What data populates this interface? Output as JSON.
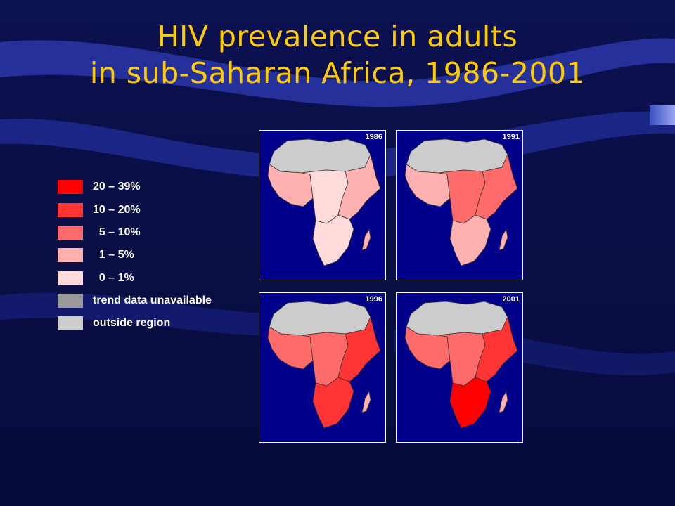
{
  "slide": {
    "title_line1": "HIV prevalence in adults",
    "title_line2": "in sub-Saharan Africa, 1986-2001"
  },
  "legend": [
    {
      "label": "20 – 39%",
      "color": "#ff0000"
    },
    {
      "label": "10 – 20%",
      "color": "#ff3535"
    },
    {
      "label": "  5 – 10%",
      "color": "#ff6b6b"
    },
    {
      "label": "  1 – 5%",
      "color": "#ffb0b0"
    },
    {
      "label": "  0 – 1%",
      "color": "#ffdada"
    },
    {
      "label": "trend data unavailable",
      "color": "#999999"
    },
    {
      "label": "outside region",
      "color": "#cccccc"
    }
  ],
  "maps": [
    {
      "year": "1986",
      "north": "outside region",
      "west": "1 – 5%",
      "center": "0 – 1%",
      "east": "1 – 5%",
      "south": "0 – 1%"
    },
    {
      "year": "1991",
      "north": "outside region",
      "west": "1 – 5%",
      "center": "5 – 10%",
      "east": "5 – 10%",
      "south": "1 – 5%"
    },
    {
      "year": "1996",
      "north": "outside region",
      "west": "5 – 10%",
      "center": "5 – 10%",
      "east": "10 – 20%",
      "south": "10 – 20%"
    },
    {
      "year": "2001",
      "north": "outside region",
      "west": "5 – 10%",
      "center": "5 – 10%",
      "east": "10 – 20%",
      "south": "20 – 39%"
    }
  ]
}
